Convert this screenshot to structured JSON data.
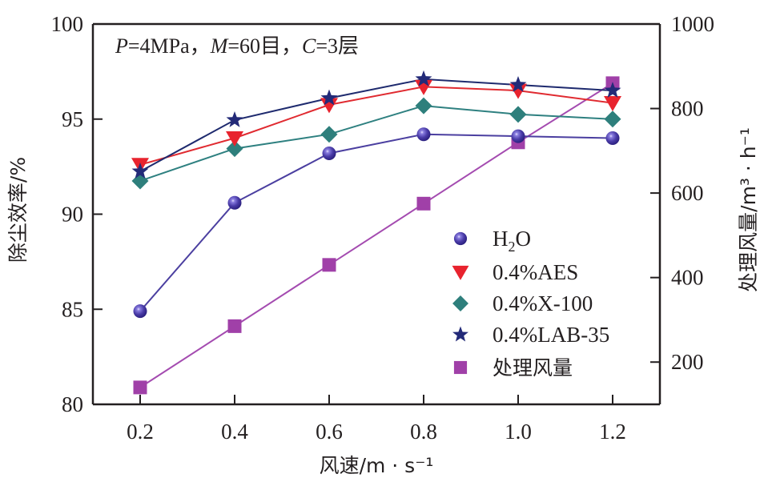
{
  "chart_data": {
    "type": "line",
    "title": "",
    "annotation": {
      "parts": [
        {
          "text": "P",
          "italic": true
        },
        {
          "text": "=4MPa，",
          "italic": false
        },
        {
          "text": "M",
          "italic": true
        },
        {
          "text": "=60目，",
          "italic": false
        },
        {
          "text": "C",
          "italic": true
        },
        {
          "text": "=3层",
          "italic": false
        }
      ]
    },
    "xlabel": "风速/m · s⁻¹",
    "ylabel": "除尘效率/%",
    "y2label": "处理风量/m³ · h⁻¹",
    "x": [
      0.2,
      0.4,
      0.6,
      0.8,
      1.0,
      1.2
    ],
    "xlim": [
      0.1,
      1.3
    ],
    "ylim": [
      80,
      100
    ],
    "y2lim": [
      100,
      1000
    ],
    "xticks": [
      0.2,
      0.4,
      0.6,
      0.8,
      1.0,
      1.2
    ],
    "xtick_labels": [
      "0.2",
      "0.4",
      "0.6",
      "0.8",
      "1.0",
      "1.2"
    ],
    "yticks": [
      80,
      85,
      90,
      95,
      100
    ],
    "ytick_labels": [
      "80",
      "85",
      "90",
      "95",
      "100"
    ],
    "y2ticks": [
      200,
      400,
      600,
      800,
      1000
    ],
    "y2tick_labels": [
      "200",
      "400",
      "600",
      "800",
      "1000"
    ],
    "grid": false,
    "legend_position": "lower-right",
    "series": [
      {
        "name": "H2O",
        "label_main": "H",
        "label_sub": "2",
        "label_tail": "O",
        "axis": "left",
        "marker": "sphere",
        "color": "#4a3ca8",
        "line_color": "#4b3fa0",
        "values": [
          84.9,
          90.6,
          93.2,
          94.2,
          94.1,
          94.0
        ]
      },
      {
        "name": "0.4%AES",
        "axis": "left",
        "marker": "triangle-down",
        "color": "#e8232e",
        "line_color": "#e02a30",
        "values": [
          92.6,
          94.0,
          95.75,
          96.7,
          96.5,
          95.85
        ]
      },
      {
        "name": "0.4%X-100",
        "axis": "left",
        "marker": "diamond",
        "color": "#2e7f7c",
        "line_color": "#2e8080",
        "values": [
          91.75,
          93.45,
          94.2,
          95.7,
          95.25,
          95.0
        ]
      },
      {
        "name": "0.4%LAB-35",
        "axis": "left",
        "marker": "star",
        "color": "#232a78",
        "line_color": "#1e2a6e",
        "values": [
          92.25,
          94.95,
          96.1,
          97.1,
          96.8,
          96.5
        ]
      },
      {
        "name": "处理风量",
        "axis": "right",
        "marker": "square",
        "color": "#a040a8",
        "line_color": "#a44bb0",
        "values": [
          140,
          285,
          430,
          575,
          720,
          860
        ]
      }
    ]
  }
}
